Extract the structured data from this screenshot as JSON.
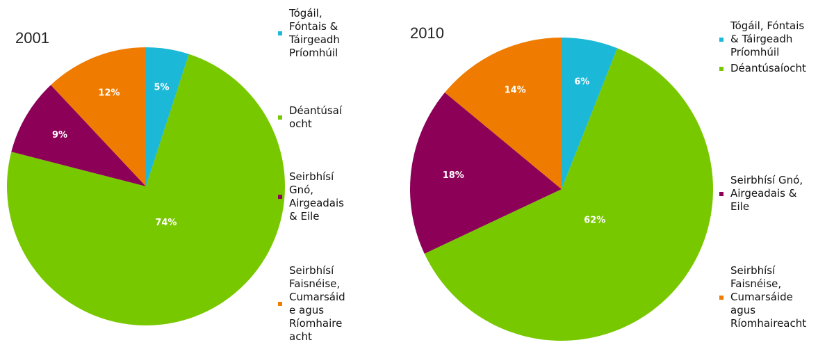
{
  "chart_data": [
    {
      "type": "pie",
      "title": "2001",
      "categories": [
        "Tógáil, Fóntais & Táirgeadh Príomhúil",
        "Déantúsaíocht",
        "Seirbhísí Gnó, Airgeadais & Eile",
        "Seirbhísí Faisnéise, Cumarsáide agus Ríomhaireacht"
      ],
      "values": [
        5,
        74,
        9,
        12
      ],
      "value_labels": [
        "5%",
        "74%",
        "9%",
        "12%"
      ],
      "colors": [
        "#1cb8d8",
        "#78c800",
        "#8c0058",
        "#ef7c00"
      ],
      "legend": "right"
    },
    {
      "type": "pie",
      "title": "2010",
      "categories": [
        "Tógáil, Fóntais & Táirgeadh Príomhúil",
        "Déantúsaíocht",
        "Seirbhísí Gnó, Airgeadais & Eile",
        "Seirbhísí Faisnéise, Cumarsáide agus Ríomhaireacht"
      ],
      "values": [
        6,
        62,
        18,
        14
      ],
      "value_labels": [
        "6%",
        "62%",
        "18%",
        "14%"
      ],
      "colors": [
        "#1cb8d8",
        "#78c800",
        "#8c0058",
        "#ef7c00"
      ],
      "legend": "right"
    }
  ]
}
